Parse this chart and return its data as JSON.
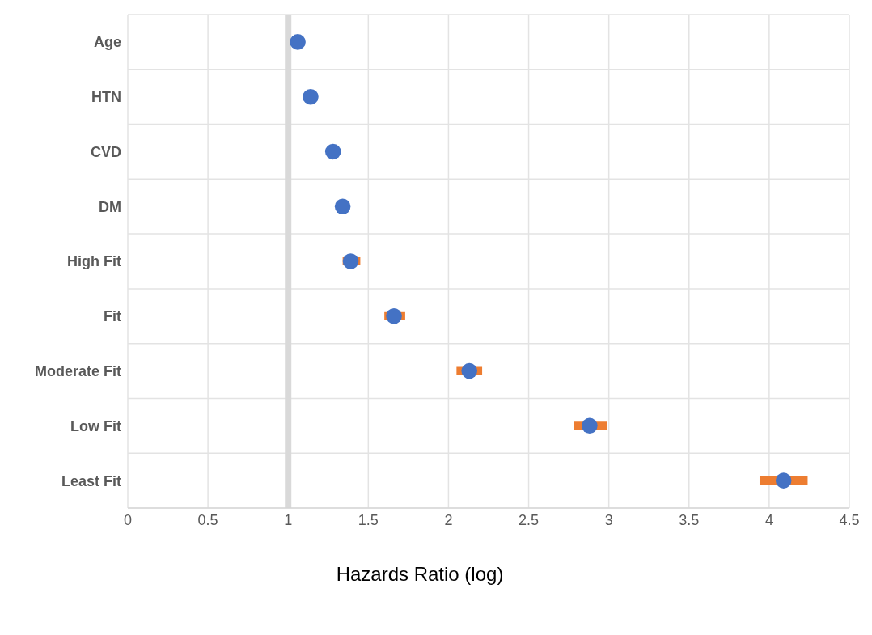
{
  "chart_data": {
    "type": "scatter",
    "xlabel": "Hazards Ratio (log)",
    "categories": [
      "Age",
      "HTN",
      "CVD",
      "DM",
      "High Fit",
      "Fit",
      "Moderate Fit",
      "Low Fit",
      "Least Fit"
    ],
    "orientation": "horizontal",
    "series": [
      {
        "color": "#4472c4",
        "values": [
          1.06,
          1.14,
          1.28,
          1.34,
          1.39,
          1.66,
          2.13,
          2.88,
          4.09
        ],
        "errors": [
          null,
          null,
          null,
          null,
          [
            1.34,
            1.45
          ],
          [
            1.6,
            1.73
          ],
          [
            2.05,
            2.21
          ],
          [
            2.78,
            2.99
          ],
          [
            3.94,
            4.24
          ]
        ]
      }
    ],
    "xlim": [
      0,
      4.5
    ],
    "xticks": [
      0,
      0.5,
      1,
      1.5,
      2,
      2.5,
      3,
      3.5,
      4,
      4.5
    ],
    "ref_lines": [
      {
        "axis": "x",
        "value": 1,
        "color": "#d9d9d9"
      }
    ],
    "grid": true,
    "marker": "circle"
  }
}
